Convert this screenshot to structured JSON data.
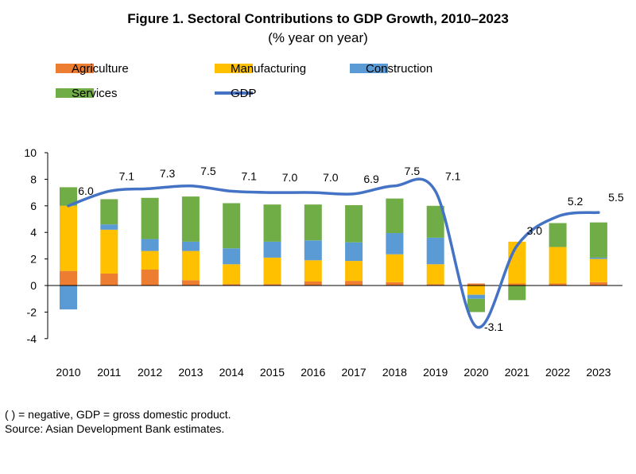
{
  "title": "Figure 1. Sectoral Contributions to GDP Growth, 2010–2023",
  "subtitle": "(% year on year)",
  "notes": {
    "abbreviations": "( ) = negative, GDP = gross domestic product.",
    "source": "Source: Asian Development Bank estimates."
  },
  "chart_data": {
    "type": "bar",
    "stacked": true,
    "categories": [
      "2010",
      "2011",
      "2012",
      "2013",
      "2014",
      "2015",
      "2016",
      "2017",
      "2018",
      "2019",
      "2020",
      "2021",
      "2022",
      "2023"
    ],
    "ylim": [
      -4,
      10
    ],
    "yticks": [
      -4,
      -2,
      0,
      2,
      4,
      6,
      8,
      10
    ],
    "grid": false,
    "legend_position": "top",
    "series": [
      {
        "name": "Agriculture",
        "color": "#ED7D31",
        "values": [
          1.1,
          0.9,
          1.2,
          0.4,
          0.1,
          0.1,
          0.3,
          0.35,
          0.25,
          0.1,
          0.15,
          0.15,
          0.15,
          0.25
        ]
      },
      {
        "name": "Manufacturing",
        "color": "#FFC000",
        "values": [
          4.9,
          3.3,
          1.4,
          2.2,
          1.5,
          2.0,
          1.6,
          1.5,
          2.1,
          1.5,
          -0.7,
          3.15,
          2.75,
          1.75
        ]
      },
      {
        "name": "Construction",
        "color": "#5B9BD5",
        "values": [
          -1.8,
          0.4,
          0.9,
          0.7,
          1.2,
          1.2,
          1.5,
          1.4,
          1.6,
          2.0,
          -0.3,
          0.0,
          0.0,
          0.1
        ]
      },
      {
        "name": "Services",
        "color": "#70AD47",
        "values": [
          1.4,
          1.9,
          3.1,
          3.4,
          3.4,
          2.8,
          2.7,
          2.8,
          2.6,
          2.4,
          -1.0,
          -1.1,
          1.8,
          2.65
        ]
      }
    ],
    "line": {
      "name": "GDP",
      "color": "#4472C4",
      "values": [
        6.0,
        7.1,
        7.3,
        7.5,
        7.1,
        7.0,
        7.0,
        6.9,
        7.5,
        7.1,
        -3.1,
        3.0,
        5.2,
        5.5
      ],
      "labels": [
        "6.0",
        "7.1",
        "7.3",
        "7.5",
        "7.1",
        "7.0",
        "7.0",
        "6.9",
        "7.5",
        "7.1",
        "-3.1",
        "3.0",
        "5.2",
        "5.5"
      ]
    }
  }
}
